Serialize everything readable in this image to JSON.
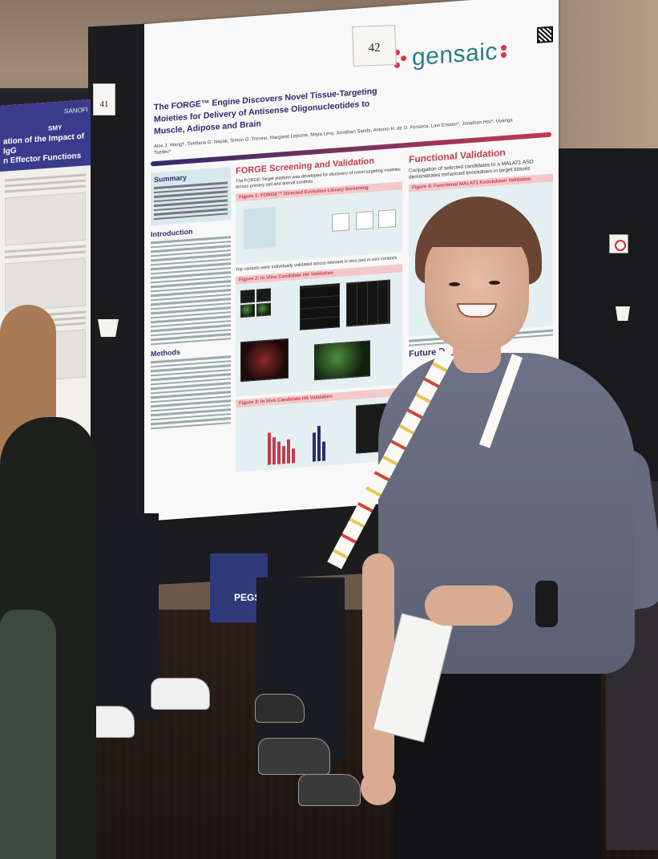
{
  "left_poster": {
    "logo": "SANOFI",
    "logo2": "SMY",
    "title": "ation of the Impact of IgG\nn Effector Functions",
    "card_number": "41"
  },
  "main_poster": {
    "card_number": "42",
    "title": "The FORGE™ Engine Discovers Novel Tissue-Targeting Moieties for Delivery of Antisense Oligonucleotides to Muscle, Adipose and Brain",
    "authors": "Alex J. Wang†, Svetlana G. Nayak, Simon G. Trevino, Margaret Lejeune, Maya Levy, Jonathan Sands, Antonio H. de O. Fonseca, Lavi Erisson*, Jonathan Hsu*, Uyanga Tsedev*",
    "logo": "gensaic",
    "summary_heading": "Summary",
    "introduction_heading": "Introduction",
    "methods_heading": "Methods",
    "forge_heading": "FORGE Screening and Validation",
    "forge_bullet": "The FORGE-Target platform was developed for discovery of novel targeting moieties across primary cell and animal contexts",
    "figure1": "Figure 1: FORGE™ Directed Evolution Library Screening",
    "top_variants": "Top variants were individually validated across relevant in vitro and in vivo contexts",
    "figure2": "Figure 2: In Vitro Candidate Hit Validation",
    "figure3": "Figure 3: In Vivo Candidate Hit Validation",
    "functional_heading": "Functional Validation",
    "functional_bullet": "Conjugation of selected candidates to a MALAT1 ASO demonstrates enhanced knockdown in target tissues",
    "figure4": "Figure 4: Functional MALAT1 Knockdown Validation",
    "future_heading": "Future D"
  },
  "banner": {
    "text": "PEGSum"
  }
}
